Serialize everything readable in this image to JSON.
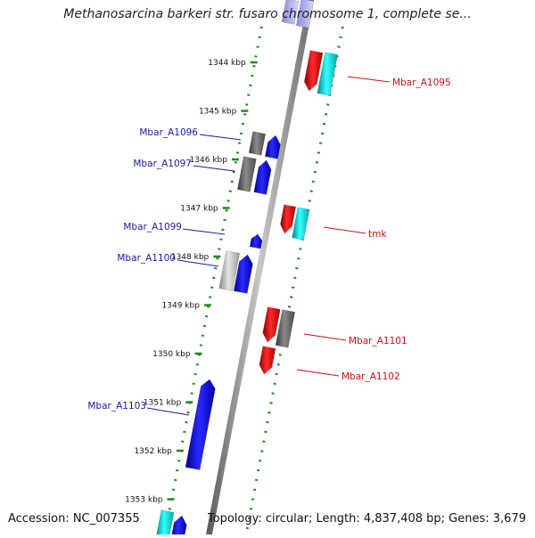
{
  "title": "Methanosarcina barkeri str. fusaro chromosome 1, complete se...",
  "footer": {
    "accession": "Accession: NC_007355",
    "topology": "Topology: circular; Length: 4,837,408 bp; Genes: 3,679"
  },
  "colors": {
    "forward_gene": "#1111ee",
    "reverse_gene": "#ee1111",
    "cyan_gene": "#11dddd",
    "gray_gene": "#777777",
    "lightgray_gene": "#bbbbbb",
    "backbone": "#8a8a8a",
    "tick": "#228822",
    "left_label": "#1a1aaa",
    "right_label": "#cc1111"
  },
  "ticks": [
    {
      "kbp": 1344,
      "label": "1344 kbp"
    },
    {
      "kbp": 1345,
      "label": "1345 kbp"
    },
    {
      "kbp": 1346,
      "label": "1346 kbp"
    },
    {
      "kbp": 1347,
      "label": "1347 kbp"
    },
    {
      "kbp": 1348,
      "label": "1348 kbp"
    },
    {
      "kbp": 1349,
      "label": "1349 kbp"
    },
    {
      "kbp": 1350,
      "label": "1350 kbp"
    },
    {
      "kbp": 1351,
      "label": "1351 kbp"
    },
    {
      "kbp": 1352,
      "label": "1352 kbp"
    },
    {
      "kbp": 1353,
      "label": "1353 kbp"
    }
  ],
  "gene_labels": [
    {
      "name": "Mbar_A1095",
      "side": "right"
    },
    {
      "name": "Mbar_A1096",
      "side": "left"
    },
    {
      "name": "Mbar_A1097",
      "side": "left"
    },
    {
      "name": "tmk",
      "side": "right"
    },
    {
      "name": "Mbar_A1099",
      "side": "left"
    },
    {
      "name": "Mbar_A1100",
      "side": "left"
    },
    {
      "name": "Mbar_A1101",
      "side": "right"
    },
    {
      "name": "Mbar_A1102",
      "side": "right"
    },
    {
      "name": "Mbar_A1103",
      "side": "left"
    }
  ]
}
